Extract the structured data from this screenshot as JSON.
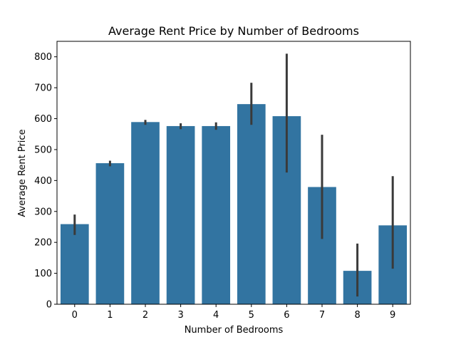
{
  "chart_data": {
    "type": "bar",
    "title": "Average Rent Price by Number of Bedrooms",
    "xlabel": "Number of Bedrooms",
    "ylabel": "Average Rent Price",
    "categories": [
      "0",
      "1",
      "2",
      "3",
      "4",
      "5",
      "6",
      "7",
      "8",
      "9"
    ],
    "values": [
      259,
      456,
      589,
      576,
      576,
      647,
      608,
      379,
      108,
      255
    ],
    "error_low": [
      224,
      446,
      580,
      566,
      564,
      580,
      426,
      211,
      25,
      115
    ],
    "error_high": [
      290,
      464,
      596,
      585,
      588,
      716,
      810,
      548,
      196,
      414
    ],
    "yticks": [
      0,
      100,
      200,
      300,
      400,
      500,
      600,
      700,
      800
    ],
    "ylim": [
      0,
      850
    ],
    "grid": false,
    "colors": {
      "bar": "#3274a1",
      "error_bar": "#3a3a3a",
      "axis": "#000000"
    }
  }
}
